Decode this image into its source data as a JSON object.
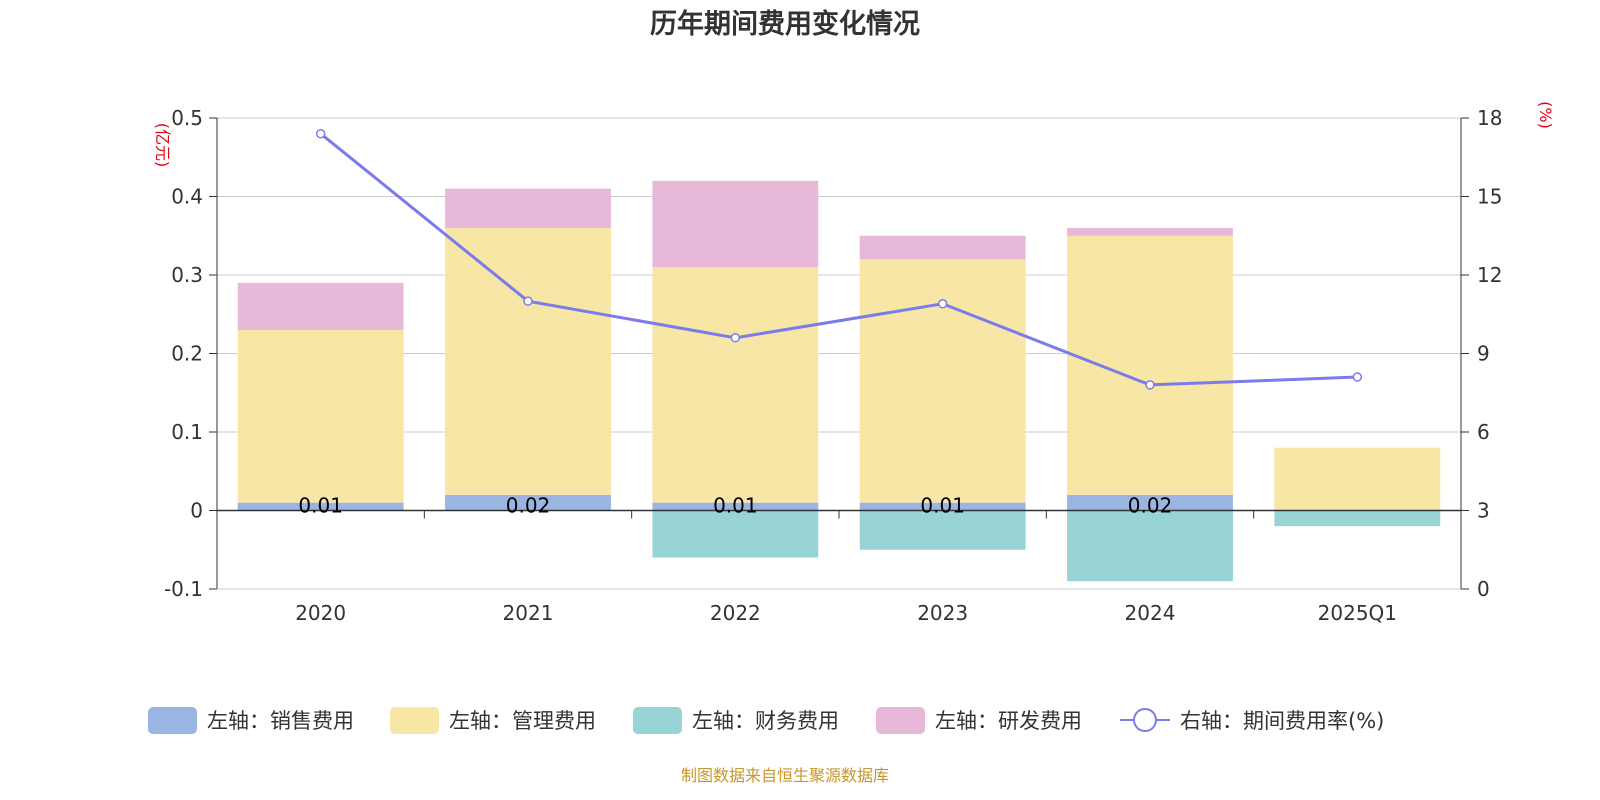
{
  "colors": {
    "sales": "#9bb5e2",
    "admin": "#f8e6a7",
    "finance": "#98d4d6",
    "rd": "#e7b8d8",
    "rate": "#7b7bea",
    "unit": "#e60012",
    "source": "#c8962a"
  },
  "chart_data": {
    "type": "bar",
    "title": "历年期间费用变化情况",
    "source_note": "制图数据来自恒生聚源数据库",
    "left_unit": "(亿元)",
    "right_unit": "(%)",
    "categories": [
      "2020",
      "2021",
      "2022",
      "2023",
      "2024",
      "2025Q1"
    ],
    "left_axis": {
      "ylim": [
        -0.1,
        0.5
      ],
      "ticks": [
        "-0.1",
        "0",
        "0.1",
        "0.2",
        "0.3",
        "0.4",
        "0.5"
      ]
    },
    "right_axis": {
      "ylim": [
        0,
        18
      ],
      "ticks": [
        "0",
        "3",
        "6",
        "9",
        "12",
        "15",
        "18"
      ]
    },
    "grid": true,
    "legend_position": "bottom",
    "series": [
      {
        "name": "左轴：销售费用",
        "type": "bar",
        "key": "sales",
        "values": [
          0.01,
          0.02,
          0.01,
          0.01,
          0.02,
          0
        ],
        "labels": [
          "0.01",
          "0.02",
          "0.01",
          "0.01",
          "0.02",
          ""
        ]
      },
      {
        "name": "左轴：管理费用",
        "type": "bar",
        "key": "admin",
        "values": [
          0.22,
          0.34,
          0.3,
          0.31,
          0.33,
          0.08
        ]
      },
      {
        "name": "左轴：财务费用",
        "type": "bar",
        "key": "finance",
        "values": [
          0,
          0,
          -0.06,
          -0.05,
          -0.09,
          -0.02
        ]
      },
      {
        "name": "左轴：研发费用",
        "type": "bar",
        "key": "rd",
        "values": [
          0.06,
          0.05,
          0.11,
          0.03,
          0.01,
          0
        ]
      },
      {
        "name": "右轴：期间费用率(%)",
        "type": "line",
        "key": "rate",
        "values": [
          17.4,
          11.0,
          9.6,
          10.9,
          7.8,
          8.1
        ]
      }
    ]
  }
}
